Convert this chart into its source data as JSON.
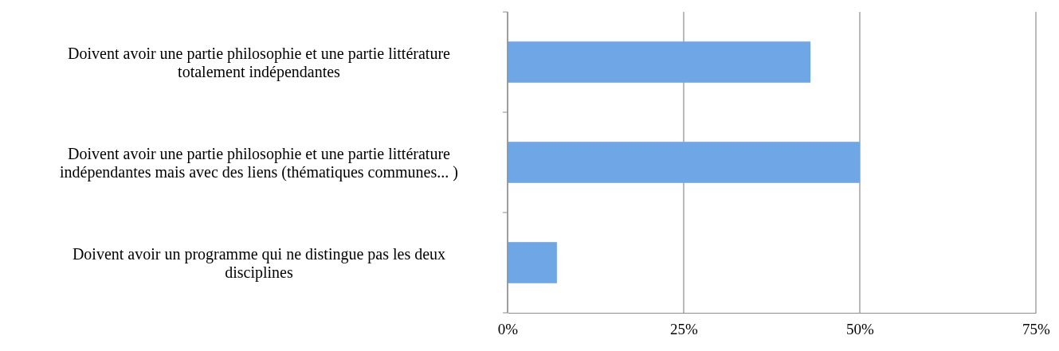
{
  "chart_data": {
    "type": "bar",
    "orientation": "horizontal",
    "categories": [
      "Doivent avoir une partie philosophie et une partie littérature totalement indépendantes",
      "Doivent avoir une partie philosophie et une partie littérature indépendantes mais avec des liens (thématiques communes... )",
      "Doivent avoir un programme qui ne distingue pas les deux disciplines"
    ],
    "values": [
      43,
      50,
      7
    ],
    "color": "#6fa6e6",
    "xlim": [
      0,
      75
    ],
    "xticks": [
      {
        "value": 0,
        "label": "0%"
      },
      {
        "value": 25,
        "label": "25%"
      },
      {
        "value": 50,
        "label": "50%"
      },
      {
        "value": 75,
        "label": "75%"
      }
    ],
    "grid": "x"
  }
}
